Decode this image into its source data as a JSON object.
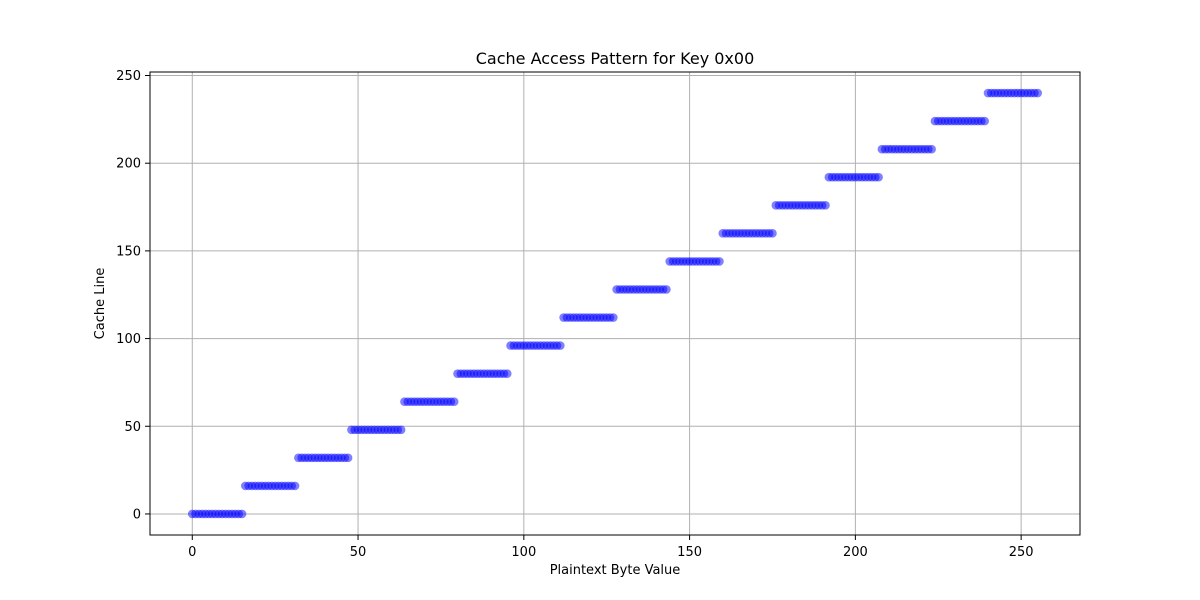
{
  "chart_data": {
    "type": "scatter",
    "title": "Cache Access Pattern for Key 0x00",
    "xlabel": "Plaintext Byte Value",
    "ylabel": "Cache Line",
    "xlim": [
      -12.75,
      267.75
    ],
    "ylim": [
      -12,
      252
    ],
    "xticks": [
      0,
      50,
      100,
      150,
      200,
      250
    ],
    "yticks": [
      0,
      50,
      100,
      150,
      200,
      250
    ],
    "grid": true,
    "legend": "none",
    "marker_color": "#0000ff",
    "marker_opacity": 0.5,
    "series": [
      {
        "x_start": 0,
        "x_end": 255,
        "x_step": 1,
        "y_rule": "floor(x / 16) * 16",
        "points_per_step": 16,
        "step_values": [
          0,
          16,
          32,
          48,
          64,
          80,
          96,
          112,
          128,
          144,
          160,
          176,
          192,
          208,
          224,
          240
        ]
      }
    ]
  }
}
